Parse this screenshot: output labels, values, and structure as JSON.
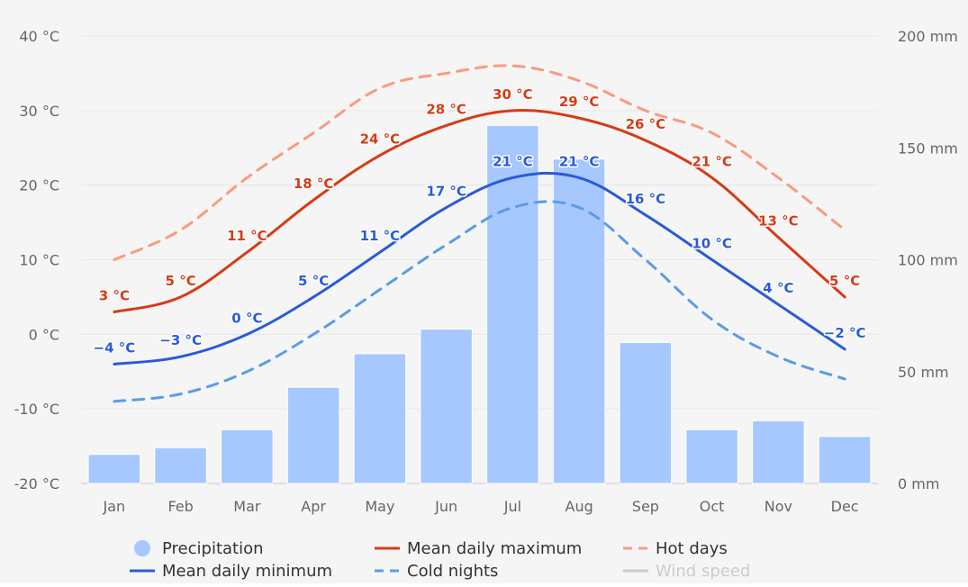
{
  "chart_data": {
    "type": "bar",
    "categories": [
      "Jan",
      "Feb",
      "Mar",
      "Apr",
      "May",
      "Jun",
      "Jul",
      "Aug",
      "Sep",
      "Oct",
      "Nov",
      "Dec"
    ],
    "left_axis": {
      "ticks": [
        "40 °C",
        "30 °C",
        "20 °C",
        "10 °C",
        "0 °C",
        "-10 °C",
        "-20 °C"
      ],
      "range": [
        -20,
        40
      ],
      "unit": "°C"
    },
    "right_axis": {
      "ticks": [
        "200 mm",
        "150 mm",
        "100 mm",
        "50 mm",
        "0 mm"
      ],
      "range": [
        0,
        200
      ],
      "unit": "mm"
    },
    "grid": true,
    "series": [
      {
        "name": "Precipitation",
        "type": "bar",
        "axis": "right",
        "color": "#a6c8ff",
        "values": [
          13,
          16,
          24,
          43,
          58,
          69,
          160,
          145,
          63,
          24,
          28,
          21
        ]
      },
      {
        "name": "Mean daily maximum",
        "type": "line",
        "axis": "left",
        "color": "#d63b16",
        "dash": "solid",
        "values": [
          3,
          5,
          11,
          18,
          24,
          28,
          30,
          29,
          26,
          21,
          13,
          5
        ],
        "labels": [
          "3 °C",
          "5 °C",
          "11 °C",
          "18 °C",
          "24 °C",
          "28 °C",
          "30 °C",
          "29 °C",
          "26 °C",
          "21 °C",
          "13 °C",
          "5 °C"
        ]
      },
      {
        "name": "Hot days",
        "type": "line",
        "axis": "left",
        "color": "#fa9a80",
        "dash": "dashed",
        "values": [
          10,
          14,
          21,
          27,
          33,
          35,
          36,
          34,
          30,
          27,
          21,
          14
        ]
      },
      {
        "name": "Mean daily minimum",
        "type": "line",
        "axis": "left",
        "color": "#2a5bd7",
        "dash": "solid",
        "values": [
          -4,
          -3,
          0,
          5,
          11,
          17,
          21,
          21,
          16,
          10,
          4,
          -2
        ],
        "labels": [
          "−4 °C",
          "−3 °C",
          "0 °C",
          "5 °C",
          "11 °C",
          "17 °C",
          "21 °C",
          "21 °C",
          "16 °C",
          "10 °C",
          "4 °C",
          "−2 °C"
        ]
      },
      {
        "name": "Cold nights",
        "type": "line",
        "axis": "left",
        "color": "#5b9be8",
        "dash": "dashed",
        "values": [
          -9,
          -8,
          -5,
          0,
          6,
          12,
          17,
          17,
          10,
          2,
          -3,
          -6
        ]
      }
    ],
    "legend": {
      "placement": "bottom",
      "items": [
        {
          "name": "Precipitation",
          "symbol": "circle",
          "color": "#a6c8ff",
          "visible": true
        },
        {
          "name": "Mean daily maximum",
          "symbol": "line",
          "color": "#d63b16",
          "visible": true
        },
        {
          "name": "Hot days",
          "symbol": "dash",
          "color": "#fa9a80",
          "visible": true
        },
        {
          "name": "Mean daily minimum",
          "symbol": "line",
          "color": "#2a5bd7",
          "visible": true
        },
        {
          "name": "Cold nights",
          "symbol": "dash",
          "color": "#5b9be8",
          "visible": true
        },
        {
          "name": "Wind speed",
          "symbol": "line",
          "color": "#cccccc",
          "visible": false
        }
      ]
    }
  }
}
